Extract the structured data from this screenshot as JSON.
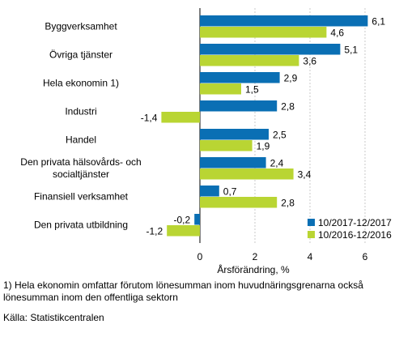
{
  "chart_data": {
    "type": "bar",
    "orientation": "horizontal",
    "categories": [
      [
        "Byggverksamhet"
      ],
      [
        "Övriga tjänster"
      ],
      [
        "Hela ekonomin 1)"
      ],
      [
        "Industri"
      ],
      [
        "Handel"
      ],
      [
        "Den privata hälsovårds- och",
        "socialtjänster"
      ],
      [
        "Finansiell verksamhet"
      ],
      [
        "Den privata utbildning"
      ]
    ],
    "series": [
      {
        "name": "10/2017-12/2017",
        "color": "#0a6fb4",
        "values": [
          6.1,
          5.1,
          2.9,
          2.8,
          2.5,
          2.4,
          0.7,
          -0.2
        ],
        "labels": [
          "6,1",
          "5,1",
          "2,9",
          "2,8",
          "2,5",
          "2,4",
          "0,7",
          "-0,2"
        ]
      },
      {
        "name": "10/2016-12/2016",
        "color": "#b9d533",
        "values": [
          4.6,
          3.6,
          1.5,
          -1.4,
          1.9,
          3.4,
          2.8,
          -1.2
        ],
        "labels": [
          "4,6",
          "3,6",
          "1,5",
          "-1,4",
          "1,9",
          "3,4",
          "2,8",
          "-1,2"
        ]
      }
    ],
    "xlabel": "Årsförändring, %",
    "xlim": [
      -2.2,
      6.9
    ],
    "xticks": [
      0,
      2,
      4,
      6
    ],
    "grid": true,
    "legend_position": "bottom-right"
  },
  "footnote": {
    "line1": "1) Hela ekonomin omfattar förutom lönesumman inom huvudnäringsgrenarna också",
    "line2": "lönesumman inom den offentliga sektorn"
  },
  "source": "Källa: Statistikcentralen"
}
